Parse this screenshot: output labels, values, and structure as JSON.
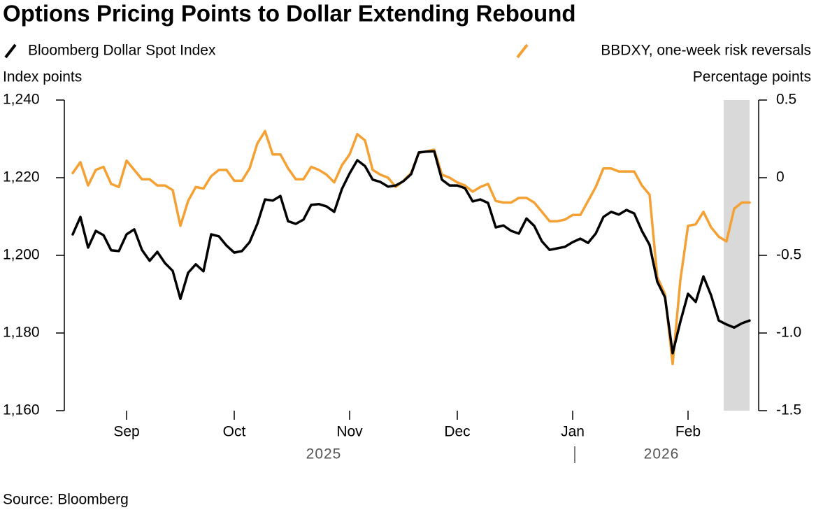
{
  "chart_data": {
    "type": "line",
    "title": "Options Pricing Points to Dollar Extending Rebound",
    "y_label": "Index points",
    "y2_label": "Percentage points",
    "source": "Source: Bloomberg",
    "years": [
      "2025",
      "2026"
    ],
    "categories": [
      null,
      null,
      null,
      null,
      null,
      null,
      null,
      "Sep",
      null,
      null,
      null,
      null,
      null,
      null,
      null,
      null,
      null,
      null,
      null,
      null,
      null,
      "Oct",
      null,
      null,
      null,
      null,
      null,
      null,
      null,
      null,
      null,
      null,
      null,
      null,
      null,
      null,
      "Nov",
      null,
      null,
      null,
      null,
      null,
      null,
      null,
      null,
      null,
      null,
      null,
      null,
      null,
      "Dec",
      null,
      null,
      null,
      null,
      null,
      null,
      null,
      null,
      null,
      null,
      null,
      null,
      null,
      null,
      "Jan",
      null,
      null,
      null,
      null,
      null,
      null,
      null,
      null,
      null,
      null,
      null,
      null,
      null,
      null,
      "Feb",
      null,
      null,
      null,
      null,
      null,
      null,
      null,
      null
    ],
    "series": [
      {
        "name": "Bloomberg Dollar Spot Index",
        "color": "#000000",
        "axis": "y",
        "values": [
          1205.4,
          1209.9,
          1202.0,
          1206.3,
          1205.2,
          1201.3,
          1201.1,
          1205.4,
          1206.7,
          1201.4,
          1198.6,
          1200.9,
          1198.0,
          1196.0,
          1188.8,
          1195.5,
          1197.7,
          1195.9,
          1205.4,
          1204.9,
          1202.5,
          1200.7,
          1201.1,
          1203.4,
          1208.1,
          1214.4,
          1214.1,
          1215.3,
          1208.8,
          1208.1,
          1209.2,
          1213.0,
          1213.2,
          1212.6,
          1211.2,
          1217.1,
          1221.1,
          1224.5,
          1223.0,
          1219.5,
          1218.9,
          1217.7,
          1218.0,
          1219.1,
          1220.9,
          1226.5,
          1226.7,
          1226.8,
          1219.5,
          1218.0,
          1218.0,
          1217.3,
          1213.9,
          1214.4,
          1213.5,
          1207.2,
          1207.7,
          1206.3,
          1205.6,
          1209.5,
          1207.6,
          1203.6,
          1201.4,
          1201.8,
          1202.2,
          1203.4,
          1204.3,
          1203.2,
          1205.6,
          1209.9,
          1211.2,
          1210.5,
          1211.7,
          1210.8,
          1206.3,
          1202.7,
          1193.2,
          1189.2,
          1174.8,
          1182.9,
          1190.1,
          1188.0,
          1194.6,
          1189.7,
          1183.2,
          1182.2,
          1181.4,
          1182.5,
          1183.2
        ]
      },
      {
        "name": "BBDXY, one-week risk reversals",
        "color": "#f5a033",
        "axis": "y2",
        "values": [
          0.03,
          0.1,
          -0.05,
          0.05,
          0.07,
          -0.04,
          -0.06,
          0.11,
          0.05,
          -0.01,
          -0.01,
          -0.05,
          -0.05,
          -0.08,
          -0.31,
          -0.15,
          -0.06,
          -0.07,
          0.01,
          0.05,
          0.05,
          -0.02,
          -0.02,
          0.06,
          0.22,
          0.3,
          0.15,
          0.15,
          0.06,
          -0.01,
          -0.01,
          0.07,
          0.05,
          0.02,
          -0.03,
          0.08,
          0.15,
          0.28,
          0.24,
          0.05,
          0.02,
          0,
          -0.06,
          -0.02,
          0.03,
          0.16,
          0.17,
          0.18,
          0.02,
          0,
          -0.03,
          -0.05,
          -0.09,
          -0.06,
          -0.04,
          -0.15,
          -0.16,
          -0.16,
          -0.13,
          -0.13,
          -0.16,
          -0.22,
          -0.28,
          -0.28,
          -0.27,
          -0.24,
          -0.24,
          -0.15,
          -0.06,
          0.06,
          0.06,
          0.04,
          0.04,
          0.04,
          -0.05,
          -0.11,
          -0.64,
          -0.75,
          -1.2,
          -0.66,
          -0.31,
          -0.3,
          -0.22,
          -0.32,
          -0.38,
          -0.41,
          -0.2,
          -0.16,
          -0.16
        ]
      }
    ],
    "ylim": [
      1160,
      1240
    ],
    "yticks": [
      {
        "value": 1160,
        "label": "1,160"
      },
      {
        "value": 1180,
        "label": "1,180"
      },
      {
        "value": 1200,
        "label": "1,200"
      },
      {
        "value": 1220,
        "label": "1,220"
      },
      {
        "value": 1240,
        "label": "1,240"
      }
    ],
    "y2lim": [
      -1.5,
      0.5
    ],
    "y2ticks": [
      -1.5,
      {
        "value": -1,
        "label": "-1.0"
      },
      -0.5,
      0,
      0.5
    ],
    "grid": false
  }
}
